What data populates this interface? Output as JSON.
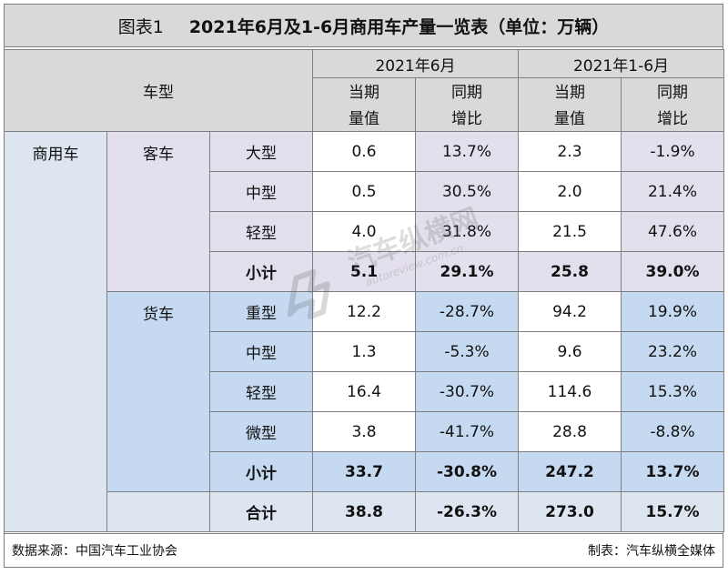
{
  "title": {
    "prefix": "图表1",
    "main": "2021年6月及1-6月商用车产量一览表（单位：万辆）"
  },
  "header": {
    "vehicle_type": "车型",
    "period_june": "2021年6月",
    "period_h1": "2021年1-6月",
    "col_current_l1": "当期",
    "col_current_l2": "量值",
    "col_yoy_l1": "同期",
    "col_yoy_l2": "增比"
  },
  "category": "商用车",
  "groups": {
    "bus": {
      "name": "客车",
      "rows": [
        {
          "type": "大型",
          "jun_value": "0.6",
          "jun_yoy": "13.7%",
          "h1_value": "2.3",
          "h1_yoy": "-1.9%"
        },
        {
          "type": "中型",
          "jun_value": "0.5",
          "jun_yoy": "30.5%",
          "h1_value": "2.0",
          "h1_yoy": "21.4%"
        },
        {
          "type": "轻型",
          "jun_value": "4.0",
          "jun_yoy": "31.8%",
          "h1_value": "21.5",
          "h1_yoy": "47.6%"
        }
      ],
      "subtotal": {
        "label": "小计",
        "jun_value": "5.1",
        "jun_yoy": "29.1%",
        "h1_value": "25.8",
        "h1_yoy": "39.0%"
      }
    },
    "truck": {
      "name": "货车",
      "rows": [
        {
          "type": "重型",
          "jun_value": "12.2",
          "jun_yoy": "-28.7%",
          "h1_value": "94.2",
          "h1_yoy": "19.9%"
        },
        {
          "type": "中型",
          "jun_value": "1.3",
          "jun_yoy": "-5.3%",
          "h1_value": "9.6",
          "h1_yoy": "23.2%"
        },
        {
          "type": "轻型",
          "jun_value": "16.4",
          "jun_yoy": "-30.7%",
          "h1_value": "114.6",
          "h1_yoy": "15.3%"
        },
        {
          "type": "微型",
          "jun_value": "3.8",
          "jun_yoy": "-41.7%",
          "h1_value": "28.8",
          "h1_yoy": "-8.8%"
        }
      ],
      "subtotal": {
        "label": "小计",
        "jun_value": "33.7",
        "jun_yoy": "-30.8%",
        "h1_value": "247.2",
        "h1_yoy": "13.7%"
      }
    }
  },
  "total": {
    "label": "合计",
    "jun_value": "38.8",
    "jun_yoy": "-26.3%",
    "h1_value": "273.0",
    "h1_yoy": "15.7%"
  },
  "footer": {
    "source": "数据来源：中国汽车工业协会",
    "maker": "制表：汽车纵横全媒体"
  },
  "watermark": {
    "text": "汽车纵横网",
    "url": "autoreview.com.cn",
    "icon": "car-review-logo-icon"
  },
  "colors": {
    "header_gray": "#d9d9d9",
    "light_blue": "#dde6f0",
    "purple": "#e4dfec",
    "blue": "#c5d9f1"
  }
}
